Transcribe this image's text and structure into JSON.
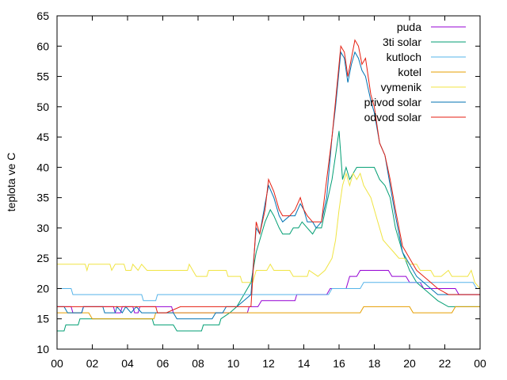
{
  "chart_data": {
    "type": "line",
    "title": "",
    "xlabel": "",
    "ylabel": "teplota ve C",
    "xlim": [
      0,
      24
    ],
    "ylim": [
      10,
      65
    ],
    "x_ticks": [
      "00",
      "02",
      "04",
      "06",
      "08",
      "10",
      "12",
      "14",
      "16",
      "18",
      "20",
      "22",
      "00"
    ],
    "y_ticks": [
      10,
      15,
      20,
      25,
      30,
      35,
      40,
      45,
      50,
      55,
      60,
      65
    ],
    "grid": false,
    "legend_position": "top-right",
    "series": [
      {
        "name": "puda",
        "color": "#9400d3",
        "points": [
          [
            0,
            17
          ],
          [
            0.8,
            17
          ],
          [
            0.9,
            16
          ],
          [
            1.4,
            16
          ],
          [
            1.5,
            17
          ],
          [
            3.2,
            17
          ],
          [
            3.3,
            16
          ],
          [
            3.6,
            16
          ],
          [
            3.7,
            17
          ],
          [
            4.3,
            17
          ],
          [
            4.4,
            16
          ],
          [
            4.6,
            16
          ],
          [
            4.7,
            17
          ],
          [
            6.5,
            17
          ],
          [
            6.6,
            16
          ],
          [
            10.8,
            16
          ],
          [
            10.9,
            17
          ],
          [
            11.4,
            17
          ],
          [
            11.6,
            18
          ],
          [
            13.5,
            18
          ],
          [
            13.6,
            19
          ],
          [
            15.3,
            19
          ],
          [
            15.5,
            20
          ],
          [
            16.4,
            20
          ],
          [
            16.6,
            22
          ],
          [
            17,
            22
          ],
          [
            17.2,
            23
          ],
          [
            18.8,
            23
          ],
          [
            19,
            22
          ],
          [
            19.8,
            22
          ],
          [
            20,
            21
          ],
          [
            20.6,
            21
          ],
          [
            20.8,
            20
          ],
          [
            22.6,
            20
          ],
          [
            22.8,
            19
          ],
          [
            24,
            19
          ]
        ]
      },
      {
        "name": "3ti solar",
        "color": "#009e73",
        "points": [
          [
            0,
            13
          ],
          [
            0.4,
            13
          ],
          [
            0.5,
            14
          ],
          [
            1.2,
            14
          ],
          [
            1.3,
            15
          ],
          [
            5.4,
            15
          ],
          [
            5.5,
            14
          ],
          [
            6.6,
            14
          ],
          [
            6.8,
            13
          ],
          [
            8.2,
            13
          ],
          [
            8.3,
            14
          ],
          [
            9.2,
            14
          ],
          [
            9.3,
            15
          ],
          [
            9.8,
            16
          ],
          [
            10.2,
            17
          ],
          [
            10.6,
            19
          ],
          [
            11,
            21
          ],
          [
            11.3,
            26
          ],
          [
            11.5,
            28
          ],
          [
            11.8,
            31
          ],
          [
            12.1,
            33
          ],
          [
            12.3,
            32
          ],
          [
            12.6,
            30
          ],
          [
            12.8,
            29
          ],
          [
            13.2,
            29
          ],
          [
            13.4,
            30
          ],
          [
            13.7,
            30
          ],
          [
            13.9,
            31
          ],
          [
            14.2,
            30
          ],
          [
            14.5,
            29
          ],
          [
            14.7,
            30
          ],
          [
            15,
            30
          ],
          [
            15.3,
            34
          ],
          [
            15.6,
            38
          ],
          [
            15.8,
            42
          ],
          [
            16,
            46
          ],
          [
            16.2,
            38
          ],
          [
            16.4,
            40
          ],
          [
            16.6,
            38
          ],
          [
            16.8,
            39
          ],
          [
            17,
            40
          ],
          [
            17.5,
            40
          ],
          [
            18,
            40
          ],
          [
            18.3,
            38
          ],
          [
            18.6,
            37
          ],
          [
            18.9,
            35
          ],
          [
            19.2,
            30
          ],
          [
            19.6,
            26
          ],
          [
            20,
            23
          ],
          [
            20.4,
            21
          ],
          [
            20.8,
            20
          ],
          [
            21.2,
            19
          ],
          [
            21.6,
            18
          ],
          [
            22.2,
            17
          ],
          [
            24,
            17
          ]
        ]
      },
      {
        "name": "kutloch",
        "color": "#56b4e9",
        "points": [
          [
            0,
            20
          ],
          [
            0.8,
            20
          ],
          [
            0.9,
            19
          ],
          [
            4.8,
            19
          ],
          [
            4.9,
            18
          ],
          [
            5.6,
            18
          ],
          [
            5.7,
            19
          ],
          [
            11.5,
            19
          ],
          [
            11.6,
            19
          ],
          [
            15.4,
            19
          ],
          [
            15.6,
            20
          ],
          [
            17.2,
            20
          ],
          [
            17.4,
            21
          ],
          [
            23.6,
            21
          ],
          [
            23.8,
            20
          ],
          [
            24,
            20
          ]
        ]
      },
      {
        "name": "kotel",
        "color": "#e69f00",
        "points": [
          [
            0,
            16
          ],
          [
            1.8,
            16
          ],
          [
            2,
            15
          ],
          [
            5.5,
            15
          ],
          [
            5.6,
            16
          ],
          [
            17.2,
            16
          ],
          [
            17.4,
            17
          ],
          [
            20,
            17
          ],
          [
            20.2,
            16
          ],
          [
            22.4,
            16
          ],
          [
            22.6,
            17
          ],
          [
            24,
            17
          ]
        ]
      },
      {
        "name": "vymenik",
        "color": "#f0e442",
        "points": [
          [
            0,
            24
          ],
          [
            1.6,
            24
          ],
          [
            1.7,
            23
          ],
          [
            1.8,
            24
          ],
          [
            3,
            24
          ],
          [
            3.1,
            23
          ],
          [
            3.3,
            24
          ],
          [
            3.8,
            24
          ],
          [
            3.9,
            23
          ],
          [
            4.2,
            23
          ],
          [
            4.3,
            24
          ],
          [
            4.6,
            23
          ],
          [
            4.8,
            24
          ],
          [
            5.1,
            23
          ],
          [
            7.4,
            23
          ],
          [
            7.5,
            24
          ],
          [
            7.7,
            23
          ],
          [
            7.9,
            22
          ],
          [
            8.5,
            22
          ],
          [
            8.6,
            23
          ],
          [
            9.6,
            23
          ],
          [
            9.7,
            22
          ],
          [
            10.4,
            22
          ],
          [
            10.5,
            21
          ],
          [
            11.1,
            21
          ],
          [
            11.3,
            23
          ],
          [
            11.9,
            23
          ],
          [
            12.1,
            24
          ],
          [
            12.3,
            23
          ],
          [
            13.2,
            23
          ],
          [
            13.4,
            22
          ],
          [
            14.2,
            22
          ],
          [
            14.3,
            23
          ],
          [
            14.8,
            22
          ],
          [
            15.2,
            23
          ],
          [
            15.6,
            25
          ],
          [
            15.8,
            28
          ],
          [
            16,
            33
          ],
          [
            16.2,
            37
          ],
          [
            16.4,
            39
          ],
          [
            16.6,
            37
          ],
          [
            16.8,
            39
          ],
          [
            17,
            38
          ],
          [
            17.2,
            39
          ],
          [
            17.4,
            37
          ],
          [
            17.6,
            36
          ],
          [
            17.8,
            35
          ],
          [
            18,
            33
          ],
          [
            18.2,
            31
          ],
          [
            18.5,
            28
          ],
          [
            18.8,
            27
          ],
          [
            19.1,
            26
          ],
          [
            19.4,
            25
          ],
          [
            19.7,
            25
          ],
          [
            20,
            24
          ],
          [
            20.4,
            24
          ],
          [
            20.6,
            23
          ],
          [
            21.2,
            23
          ],
          [
            21.4,
            22
          ],
          [
            21.8,
            22
          ],
          [
            22.2,
            23
          ],
          [
            22.4,
            22
          ],
          [
            23.3,
            22
          ],
          [
            23.5,
            23
          ],
          [
            23.7,
            21
          ],
          [
            24,
            20
          ]
        ]
      },
      {
        "name": "privod solar",
        "color": "#0072b2",
        "points": [
          [
            0,
            17
          ],
          [
            0.4,
            17
          ],
          [
            0.6,
            16
          ],
          [
            1.4,
            16
          ],
          [
            1.5,
            17
          ],
          [
            2.6,
            17
          ],
          [
            2.7,
            16
          ],
          [
            3.3,
            16
          ],
          [
            3.4,
            17
          ],
          [
            3.7,
            16
          ],
          [
            3.9,
            17
          ],
          [
            4.2,
            16
          ],
          [
            4.5,
            17
          ],
          [
            4.8,
            16
          ],
          [
            6.6,
            16
          ],
          [
            6.8,
            15
          ],
          [
            8.8,
            15
          ],
          [
            9,
            16
          ],
          [
            9.4,
            16
          ],
          [
            9.6,
            17
          ],
          [
            10.2,
            17
          ],
          [
            10.6,
            18
          ],
          [
            11,
            19
          ],
          [
            11.3,
            30
          ],
          [
            11.5,
            29
          ],
          [
            11.8,
            34
          ],
          [
            12,
            37
          ],
          [
            12.3,
            35
          ],
          [
            12.6,
            32
          ],
          [
            12.8,
            31
          ],
          [
            13.2,
            32
          ],
          [
            13.5,
            32
          ],
          [
            13.8,
            34
          ],
          [
            14,
            33
          ],
          [
            14.2,
            31
          ],
          [
            14.5,
            31
          ],
          [
            14.7,
            30
          ],
          [
            15,
            31
          ],
          [
            15.3,
            35
          ],
          [
            15.6,
            45
          ],
          [
            15.8,
            50
          ],
          [
            16.1,
            59
          ],
          [
            16.3,
            58
          ],
          [
            16.5,
            54
          ],
          [
            16.7,
            57
          ],
          [
            16.9,
            59
          ],
          [
            17.1,
            58
          ],
          [
            17.3,
            56
          ],
          [
            17.5,
            55
          ],
          [
            17.8,
            51
          ],
          [
            18,
            49
          ],
          [
            18.3,
            44
          ],
          [
            18.6,
            42
          ],
          [
            18.9,
            37
          ],
          [
            19.2,
            32
          ],
          [
            19.6,
            26
          ],
          [
            20,
            24
          ],
          [
            20.4,
            22
          ],
          [
            20.8,
            21
          ],
          [
            21.2,
            20
          ],
          [
            21.6,
            19
          ],
          [
            22.2,
            19
          ],
          [
            24,
            19
          ]
        ]
      },
      {
        "name": "odvod solar",
        "color": "#e51e10",
        "points": [
          [
            0,
            17
          ],
          [
            5.6,
            17
          ],
          [
            5.7,
            16
          ],
          [
            6.2,
            16
          ],
          [
            7,
            17
          ],
          [
            11,
            17
          ],
          [
            11.3,
            31
          ],
          [
            11.5,
            29
          ],
          [
            11.8,
            33
          ],
          [
            12,
            38
          ],
          [
            12.3,
            36
          ],
          [
            12.6,
            33
          ],
          [
            12.8,
            32
          ],
          [
            13.2,
            32
          ],
          [
            13.5,
            33
          ],
          [
            13.8,
            35
          ],
          [
            14,
            33
          ],
          [
            14.2,
            32
          ],
          [
            14.5,
            31
          ],
          [
            15,
            31
          ],
          [
            15.3,
            38
          ],
          [
            15.6,
            45
          ],
          [
            15.8,
            51
          ],
          [
            16.1,
            60
          ],
          [
            16.3,
            59
          ],
          [
            16.5,
            55
          ],
          [
            16.7,
            58
          ],
          [
            16.9,
            61
          ],
          [
            17.1,
            60
          ],
          [
            17.3,
            57
          ],
          [
            17.5,
            58
          ],
          [
            17.8,
            52
          ],
          [
            18,
            50
          ],
          [
            18.3,
            44
          ],
          [
            18.6,
            42
          ],
          [
            18.9,
            38
          ],
          [
            19.2,
            33
          ],
          [
            19.6,
            27
          ],
          [
            20,
            25
          ],
          [
            20.4,
            23
          ],
          [
            20.8,
            22
          ],
          [
            21.2,
            21
          ],
          [
            21.6,
            20
          ],
          [
            22.2,
            19
          ],
          [
            24,
            19
          ]
        ]
      }
    ]
  }
}
